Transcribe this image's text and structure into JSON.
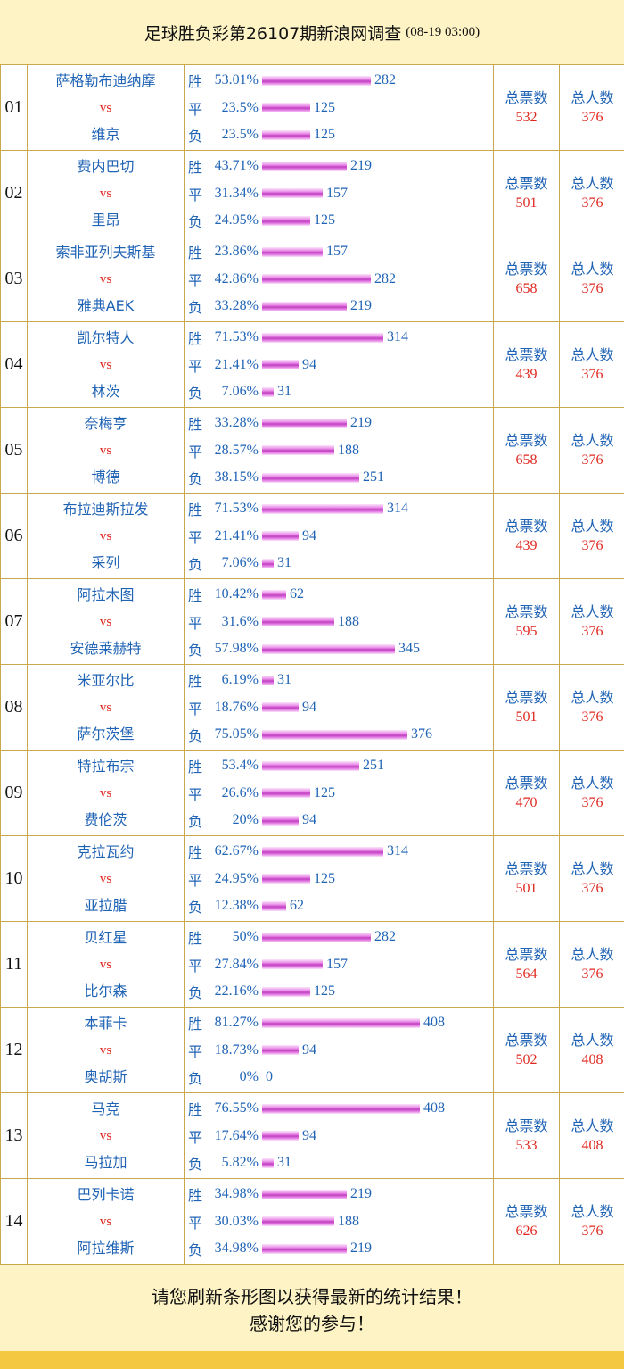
{
  "header": {
    "title": "足球胜负彩第26107期新浪网调查",
    "time": "(08-19 03:00)"
  },
  "labels": {
    "vs": "vs",
    "win": "胜",
    "draw": "平",
    "loss": "负",
    "total_votes": "总票数",
    "total_people": "总人数"
  },
  "matches": [
    {
      "no": "01",
      "home": "萨格勒布迪纳摩",
      "away": "维京",
      "win_pct": "53.01%",
      "win": 282,
      "draw_pct": "23.5%",
      "draw": 125,
      "loss_pct": "23.5%",
      "loss": 125,
      "votes": "532",
      "people": "376"
    },
    {
      "no": "02",
      "home": "费内巴切",
      "away": "里昂",
      "win_pct": "43.71%",
      "win": 219,
      "draw_pct": "31.34%",
      "draw": 157,
      "loss_pct": "24.95%",
      "loss": 125,
      "votes": "501",
      "people": "376"
    },
    {
      "no": "03",
      "home": "索非亚列夫斯基",
      "away": "雅典AEK",
      "win_pct": "23.86%",
      "win": 157,
      "draw_pct": "42.86%",
      "draw": 282,
      "loss_pct": "33.28%",
      "loss": 219,
      "votes": "658",
      "people": "376"
    },
    {
      "no": "04",
      "home": "凯尔特人",
      "away": "林茨",
      "win_pct": "71.53%",
      "win": 314,
      "draw_pct": "21.41%",
      "draw": 94,
      "loss_pct": "7.06%",
      "loss": 31,
      "votes": "439",
      "people": "376"
    },
    {
      "no": "05",
      "home": "奈梅亨",
      "away": "博德",
      "win_pct": "33.28%",
      "win": 219,
      "draw_pct": "28.57%",
      "draw": 188,
      "loss_pct": "38.15%",
      "loss": 251,
      "votes": "658",
      "people": "376"
    },
    {
      "no": "06",
      "home": "布拉迪斯拉发",
      "away": "采列",
      "win_pct": "71.53%",
      "win": 314,
      "draw_pct": "21.41%",
      "draw": 94,
      "loss_pct": "7.06%",
      "loss": 31,
      "votes": "439",
      "people": "376"
    },
    {
      "no": "07",
      "home": "阿拉木图",
      "away": "安德莱赫特",
      "win_pct": "10.42%",
      "win": 62,
      "draw_pct": "31.6%",
      "draw": 188,
      "loss_pct": "57.98%",
      "loss": 345,
      "votes": "595",
      "people": "376"
    },
    {
      "no": "08",
      "home": "米亚尔比",
      "away": "萨尔茨堡",
      "win_pct": "6.19%",
      "win": 31,
      "draw_pct": "18.76%",
      "draw": 94,
      "loss_pct": "75.05%",
      "loss": 376,
      "votes": "501",
      "people": "376"
    },
    {
      "no": "09",
      "home": "特拉布宗",
      "away": "费伦茨",
      "win_pct": "53.4%",
      "win": 251,
      "draw_pct": "26.6%",
      "draw": 125,
      "loss_pct": "20%",
      "loss": 94,
      "votes": "470",
      "people": "376"
    },
    {
      "no": "10",
      "home": "克拉瓦约",
      "away": "亚拉腊",
      "win_pct": "62.67%",
      "win": 314,
      "draw_pct": "24.95%",
      "draw": 125,
      "loss_pct": "12.38%",
      "loss": 62,
      "votes": "501",
      "people": "376"
    },
    {
      "no": "11",
      "home": "贝红星",
      "away": "比尔森",
      "win_pct": "50%",
      "win": 282,
      "draw_pct": "27.84%",
      "draw": 157,
      "loss_pct": "22.16%",
      "loss": 125,
      "votes": "564",
      "people": "376"
    },
    {
      "no": "12",
      "home": "本菲卡",
      "away": "奥胡斯",
      "win_pct": "81.27%",
      "win": 408,
      "draw_pct": "18.73%",
      "draw": 94,
      "loss_pct": "0%",
      "loss": 0,
      "votes": "502",
      "people": "408"
    },
    {
      "no": "13",
      "home": "马竞",
      "away": "马拉加",
      "win_pct": "76.55%",
      "win": 408,
      "draw_pct": "17.64%",
      "draw": 94,
      "loss_pct": "5.82%",
      "loss": 31,
      "votes": "533",
      "people": "408"
    },
    {
      "no": "14",
      "home": "巴列卡诺",
      "away": "阿拉维斯",
      "win_pct": "34.98%",
      "win": 219,
      "draw_pct": "30.03%",
      "draw": 188,
      "loss_pct": "34.98%",
      "loss": 219,
      "votes": "626",
      "people": "376"
    }
  ],
  "footer": {
    "line1": "请您刷新条形图以获得最新的统计结果！",
    "line2": "感谢您的参与！"
  },
  "colors": {
    "background": "#fdf3c4",
    "border": "#c8a84a",
    "text_blue": "#1f63b5",
    "text_red": "#e0271f",
    "bar": "#c23fc2",
    "footer_bar": "#f5c842"
  }
}
